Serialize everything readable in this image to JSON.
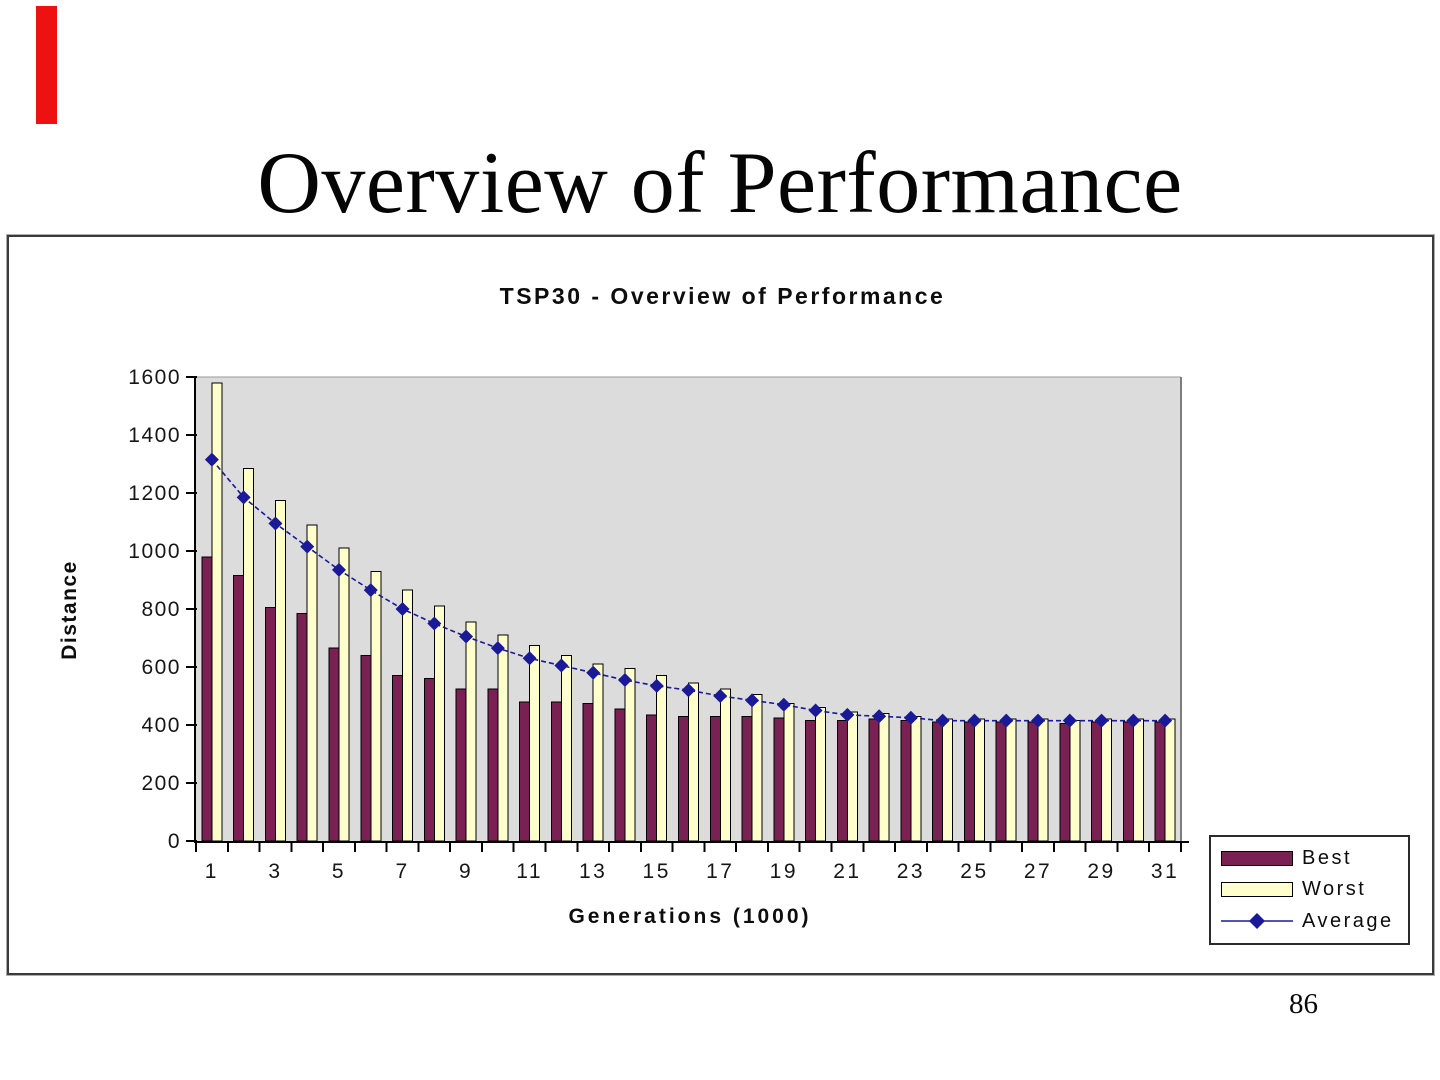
{
  "slide": {
    "title": "Overview of Performance",
    "page_number": "86",
    "red_strip_color": "#ee1111"
  },
  "chart": {
    "title": "TSP30 - Overview of Performance",
    "y_axis_title": "Distance",
    "x_axis_title": "Generations (1000)",
    "legend": [
      {
        "label": "Best"
      },
      {
        "label": "Worst"
      },
      {
        "label": "Average"
      }
    ]
  },
  "chart_data": {
    "type": "bar",
    "title": "TSP30 - Overview of Performance",
    "xlabel": "Generations (1000)",
    "ylabel": "Distance",
    "ylim": [
      0,
      1600
    ],
    "yticks": [
      0,
      200,
      400,
      600,
      800,
      1000,
      1200,
      1400,
      1600
    ],
    "grid": false,
    "legend_position": "bottom-right",
    "plot_bg": "#dcdcdc",
    "categories": [
      1,
      2,
      3,
      4,
      5,
      6,
      7,
      8,
      9,
      10,
      11,
      12,
      13,
      14,
      15,
      16,
      17,
      18,
      19,
      20,
      21,
      22,
      23,
      24,
      25,
      26,
      27,
      28,
      29,
      30,
      31
    ],
    "xtick_labels": [
      "1",
      "3",
      "5",
      "7",
      "9",
      "11",
      "13",
      "15",
      "17",
      "19",
      "21",
      "23",
      "25",
      "27",
      "29",
      "31"
    ],
    "series": [
      {
        "name": "Best",
        "type": "bar",
        "color": "#7a2153",
        "values": [
          980,
          915,
          805,
          785,
          665,
          640,
          570,
          560,
          525,
          525,
          480,
          480,
          475,
          455,
          435,
          430,
          430,
          430,
          425,
          415,
          415,
          420,
          415,
          410,
          410,
          410,
          410,
          405,
          410,
          410,
          410
        ]
      },
      {
        "name": "Worst",
        "type": "bar",
        "color": "#ffffcc",
        "values": [
          1580,
          1285,
          1175,
          1090,
          1010,
          930,
          865,
          810,
          755,
          710,
          675,
          640,
          610,
          595,
          570,
          545,
          525,
          505,
          475,
          460,
          445,
          440,
          430,
          420,
          420,
          420,
          420,
          415,
          420,
          420,
          420
        ]
      },
      {
        "name": "Average",
        "type": "line",
        "color": "#1a1a99",
        "values": [
          1315,
          1185,
          1095,
          1015,
          935,
          865,
          800,
          750,
          705,
          665,
          630,
          605,
          580,
          555,
          535,
          520,
          500,
          485,
          470,
          450,
          435,
          430,
          425,
          415,
          415,
          415,
          415,
          415,
          415,
          415,
          415
        ]
      }
    ]
  }
}
